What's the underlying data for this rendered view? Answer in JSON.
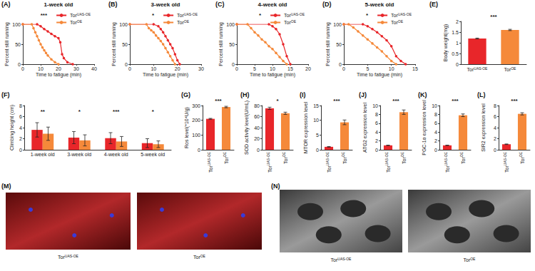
{
  "chart_data": [
    {
      "type": "line",
      "panel": "(A)",
      "title": "1-week old",
      "xlabel": "Time to fatigue (min)",
      "ylabel": "Percent still running",
      "xlim": [
        0,
        40
      ],
      "xticks": [
        0,
        10,
        20,
        30,
        40
      ],
      "ylim": [
        0,
        100
      ],
      "yticks": [
        0,
        50,
        100
      ],
      "legend": "upper right",
      "marker": "circle",
      "significance": "***",
      "series": [
        {
          "name": "TorUAS-OE",
          "color": "#e8262a",
          "x": [
            0,
            8,
            10,
            12,
            14,
            16,
            18,
            20,
            21,
            22,
            23,
            25,
            28
          ],
          "values": [
            100,
            100,
            95,
            88,
            82,
            76,
            70,
            65,
            55,
            25,
            15,
            5,
            0
          ]
        },
        {
          "name": "TorOE",
          "color": "#f5893a",
          "x": [
            0,
            5,
            6,
            7,
            8,
            9,
            10,
            11,
            12,
            13,
            14,
            16,
            18,
            20
          ],
          "values": [
            100,
            100,
            90,
            80,
            70,
            60,
            50,
            42,
            35,
            28,
            22,
            12,
            5,
            0
          ]
        }
      ]
    },
    {
      "type": "line",
      "panel": "(B)",
      "title": "3-week old",
      "xlabel": "Time to fatigue (min)",
      "ylabel": "Percent still running",
      "xlim": [
        0,
        30
      ],
      "xticks": [
        0,
        10,
        20,
        30
      ],
      "ylim": [
        0,
        100
      ],
      "yticks": [
        0,
        50,
        100
      ],
      "legend": "upper right",
      "marker": "circle",
      "significance": "*",
      "series": [
        {
          "name": "TorUAS-OE",
          "color": "#e8262a",
          "x": [
            0,
            10,
            12,
            13,
            14,
            15,
            16,
            17,
            18,
            19,
            20,
            21
          ],
          "values": [
            100,
            100,
            95,
            88,
            80,
            70,
            60,
            50,
            40,
            25,
            10,
            0
          ]
        },
        {
          "name": "TorOE",
          "color": "#f5893a",
          "x": [
            0,
            7,
            8,
            9,
            10,
            11,
            12,
            13,
            14,
            15,
            16,
            17,
            18,
            19
          ],
          "values": [
            100,
            100,
            90,
            85,
            80,
            72,
            65,
            58,
            50,
            40,
            30,
            20,
            10,
            0
          ]
        }
      ]
    },
    {
      "type": "line",
      "panel": "(C)",
      "title": "4-week old",
      "xlabel": "Time to fatigue (min)",
      "ylabel": "Percent still running",
      "xlim": [
        0,
        20
      ],
      "xticks": [
        0,
        5,
        10,
        15,
        20
      ],
      "ylim": [
        0,
        100
      ],
      "yticks": [
        0,
        50,
        100
      ],
      "legend": "upper right",
      "marker": "circle",
      "significance": "*",
      "series": [
        {
          "name": "TorUAS-OE",
          "color": "#e8262a",
          "x": [
            0,
            9,
            10,
            11,
            12,
            13,
            14,
            15
          ],
          "values": [
            100,
            100,
            95,
            88,
            75,
            50,
            20,
            0
          ]
        },
        {
          "name": "TorOE",
          "color": "#f5893a",
          "x": [
            0,
            3,
            4,
            5,
            6,
            7,
            8,
            9,
            10,
            11,
            12,
            13,
            14
          ],
          "values": [
            100,
            100,
            90,
            80,
            72,
            62,
            55,
            45,
            38,
            28,
            18,
            8,
            0
          ]
        }
      ]
    },
    {
      "type": "line",
      "panel": "(D)",
      "title": "5-week old",
      "xlabel": "Time to fatigue (min)",
      "ylabel": "Percent still running",
      "xlim": [
        0,
        15
      ],
      "xticks": [
        0,
        5,
        10,
        15
      ],
      "ylim": [
        0,
        100
      ],
      "yticks": [
        0,
        50,
        100
      ],
      "legend": "upper right",
      "marker": "circle",
      "significance": "*",
      "series": [
        {
          "name": "TorUAS-OE",
          "color": "#e8262a",
          "x": [
            0,
            4,
            5,
            6,
            7,
            8,
            9,
            10,
            11,
            12,
            13
          ],
          "values": [
            100,
            100,
            95,
            88,
            80,
            70,
            60,
            45,
            20,
            8,
            0
          ]
        },
        {
          "name": "TorOE",
          "color": "#f5893a",
          "x": [
            0,
            1,
            2,
            3,
            4,
            5,
            6,
            7,
            8,
            9,
            10,
            11
          ],
          "values": [
            100,
            100,
            92,
            82,
            72,
            62,
            52,
            42,
            32,
            20,
            8,
            0
          ]
        }
      ]
    },
    {
      "type": "bar",
      "panel": "(E)",
      "ylabel": "Body weight(mg)",
      "categories": [
        "TorUAS-OE",
        "TorOE"
      ],
      "colors": [
        "#e8262a",
        "#f5893a"
      ],
      "values": [
        1.2,
        1.6
      ],
      "errors": [
        0.02,
        0.03
      ],
      "ylim": [
        0,
        2
      ],
      "yticks": [
        0,
        0.5,
        1,
        1.5,
        2
      ],
      "significance": "***"
    },
    {
      "type": "bar",
      "panel": "(F)",
      "ylabel": "Climbing height (cm)",
      "categories": [
        "1-week old",
        "3-week old",
        "4-week old",
        "5-week old"
      ],
      "ylim": [
        0,
        8
      ],
      "yticks": [
        0,
        2,
        4,
        6,
        8
      ],
      "significance": [
        "**",
        "*",
        "***",
        "*"
      ],
      "series": [
        {
          "name": "TorUAS-OE",
          "color": "#e8262a",
          "values": [
            3.6,
            2.2,
            2.1,
            1.2
          ],
          "errors": [
            1.3,
            1.1,
            1.0,
            0.8
          ]
        },
        {
          "name": "TorOE",
          "color": "#f5893a",
          "values": [
            2.9,
            1.7,
            1.5,
            1.0
          ],
          "errors": [
            1.2,
            1.0,
            0.9,
            0.6
          ]
        }
      ]
    },
    {
      "type": "bar",
      "panel": "(G)",
      "ylabel": "Ros level(*10⁴U/g)",
      "categories": [
        "TorUAS-OE",
        "TorOE"
      ],
      "colors": [
        "#e8262a",
        "#f5893a"
      ],
      "values": [
        210,
        290
      ],
      "errors": [
        3,
        5
      ],
      "ylim": [
        0,
        300
      ],
      "yticks": [
        0,
        100,
        200,
        300
      ],
      "significance": "***"
    },
    {
      "type": "bar",
      "panel": "(H)",
      "ylabel": "SOD activity level(U/mL)",
      "categories": [
        "TorUAS-OE",
        "TorOE"
      ],
      "colors": [
        "#e8262a",
        "#f5893a"
      ],
      "values": [
        75,
        66
      ],
      "errors": [
        2,
        2
      ],
      "ylim": [
        0,
        80
      ],
      "yticks": [
        0,
        20,
        40,
        60,
        80
      ],
      "significance": "*"
    },
    {
      "type": "bar",
      "panel": "(I)",
      "ylabel": "MTOR expression level",
      "categories": [
        "TorUAS-OE",
        "TorOE"
      ],
      "colors": [
        "#e8262a",
        "#f5893a"
      ],
      "values": [
        1,
        9.3
      ],
      "errors": [
        0.1,
        0.8
      ],
      "ylim": [
        0,
        15
      ],
      "yticks": [
        0,
        5,
        10,
        15
      ],
      "significance": "***"
    },
    {
      "type": "bar",
      "panel": "(J)",
      "ylabel": "ATG2 expression level",
      "categories": [
        "TorUAS-OE",
        "TorOE"
      ],
      "colors": [
        "#e8262a",
        "#f5893a"
      ],
      "values": [
        1,
        8.5
      ],
      "errors": [
        0.05,
        0.5
      ],
      "ylim": [
        0,
        10
      ],
      "yticks": [
        0,
        2,
        4,
        6,
        8,
        10
      ],
      "significance": "***"
    },
    {
      "type": "bar",
      "panel": "(K)",
      "ylabel": "PGC-1α expression level",
      "categories": [
        "TorUAS-OE",
        "TorOE"
      ],
      "colors": [
        "#e8262a",
        "#f5893a"
      ],
      "values": [
        1,
        7.8
      ],
      "errors": [
        0.05,
        0.3
      ],
      "ylim": [
        0,
        10
      ],
      "yticks": [
        0,
        2,
        4,
        6,
        8,
        10
      ],
      "significance": "***"
    },
    {
      "type": "bar",
      "panel": "(L)",
      "ylabel": "SIR2 expression level",
      "categories": [
        "TorUAS-OE",
        "TorOE"
      ],
      "colors": [
        "#e8262a",
        "#f5893a"
      ],
      "values": [
        1,
        6.5
      ],
      "errors": [
        0.05,
        0.2
      ],
      "ylim": [
        0,
        8
      ],
      "yticks": [
        0,
        2,
        4,
        6,
        8
      ],
      "significance": "***"
    },
    {
      "type": "image",
      "panel": "(M)",
      "captions": [
        "TorUAS-OE",
        "TorOE"
      ]
    },
    {
      "type": "image",
      "panel": "(N)",
      "captions": [
        "TorUAS-OE",
        "TorOE"
      ]
    }
  ]
}
